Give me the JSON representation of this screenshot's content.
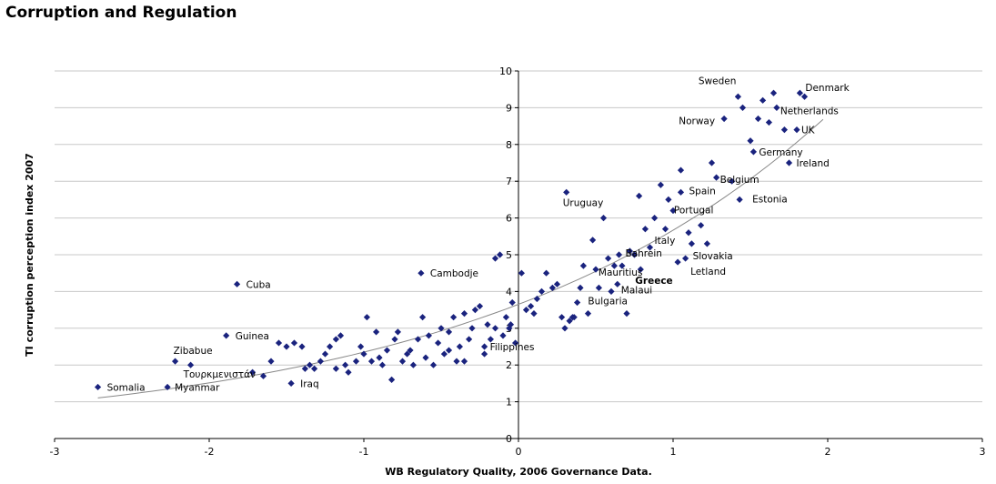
{
  "chart_data": {
    "type": "scatter",
    "title": "Corruption and Regulation",
    "xlabel": "WB Regulatory Quality, 2006 Governance Data.",
    "ylabel": "TI corruption perception index 2007",
    "xlim": [
      -3,
      3
    ],
    "ylim": [
      0,
      10
    ],
    "x_ticks": [
      -3,
      -2,
      -1,
      0,
      1,
      2,
      3
    ],
    "y_ticks": [
      0,
      1,
      2,
      3,
      4,
      5,
      6,
      7,
      8,
      9,
      10
    ],
    "grid": "horizontal",
    "colors": {
      "points": "#1a237e",
      "trend": "#888888",
      "grid": "#c8c8c8"
    },
    "labeled_points": [
      {
        "label": "Denmark",
        "x": 1.82,
        "y": 9.4
      },
      {
        "label": "Sweden",
        "x": 1.42,
        "y": 9.3
      },
      {
        "label": "Netherlands",
        "x": 1.67,
        "y": 9.0
      },
      {
        "label": "Norway",
        "x": 1.33,
        "y": 8.7
      },
      {
        "label": "UK",
        "x": 1.8,
        "y": 8.4
      },
      {
        "label": "Germany",
        "x": 1.52,
        "y": 7.8
      },
      {
        "label": "Ireland",
        "x": 1.75,
        "y": 7.5
      },
      {
        "label": "Belgium",
        "x": 1.28,
        "y": 7.1
      },
      {
        "label": "Spain",
        "x": 1.05,
        "y": 6.7
      },
      {
        "label": "Estonia",
        "x": 1.43,
        "y": 6.5
      },
      {
        "label": "Uruguay",
        "x": 0.31,
        "y": 6.7
      },
      {
        "label": "Portugal",
        "x": 0.97,
        "y": 6.5
      },
      {
        "label": "Italy",
        "x": 0.85,
        "y": 5.2
      },
      {
        "label": "Bahrein",
        "x": 0.75,
        "y": 5.0
      },
      {
        "label": "Slovakia",
        "x": 1.08,
        "y": 4.9
      },
      {
        "label": "Letland",
        "x": 1.03,
        "y": 4.8
      },
      {
        "label": "Mauritius",
        "x": 0.67,
        "y": 4.7
      },
      {
        "label": "Greece",
        "x": 0.79,
        "y": 4.6,
        "bold": true
      },
      {
        "label": "Malaui",
        "x": 0.64,
        "y": 4.2
      },
      {
        "label": "Bulgaria",
        "x": 0.52,
        "y": 4.1
      },
      {
        "label": "Cambodje",
        "x": -0.63,
        "y": 4.5
      },
      {
        "label": "Cuba",
        "x": -1.82,
        "y": 4.2
      },
      {
        "label": "Guinea",
        "x": -1.89,
        "y": 2.8
      },
      {
        "label": "Filippines",
        "x": -0.22,
        "y": 2.5
      },
      {
        "label": "Zibabue",
        "x": -2.22,
        "y": 2.1
      },
      {
        "label": "Τουρκμενιστάν",
        "x": -2.12,
        "y": 2.0
      },
      {
        "label": "Iraq",
        "x": -1.47,
        "y": 1.5
      },
      {
        "label": "Somalia",
        "x": -2.72,
        "y": 1.4
      },
      {
        "label": "Myanmar",
        "x": -2.27,
        "y": 1.4
      }
    ],
    "other_points": [
      [
        -1.72,
        1.8
      ],
      [
        -1.65,
        1.7
      ],
      [
        -1.6,
        2.1
      ],
      [
        -1.55,
        2.6
      ],
      [
        -1.5,
        2.5
      ],
      [
        -1.45,
        2.6
      ],
      [
        -1.4,
        2.5
      ],
      [
        -1.38,
        1.9
      ],
      [
        -1.35,
        2.0
      ],
      [
        -1.28,
        2.1
      ],
      [
        -1.25,
        2.3
      ],
      [
        -1.22,
        2.5
      ],
      [
        -1.18,
        2.7
      ],
      [
        -1.15,
        2.8
      ],
      [
        -1.12,
        2.0
      ],
      [
        -1.1,
        1.8
      ],
      [
        -1.05,
        2.1
      ],
      [
        -1.02,
        2.5
      ],
      [
        -1.0,
        2.3
      ],
      [
        -0.98,
        3.3
      ],
      [
        -0.95,
        2.1
      ],
      [
        -0.92,
        2.9
      ],
      [
        -0.88,
        2.0
      ],
      [
        -0.85,
        2.4
      ],
      [
        -0.82,
        1.6
      ],
      [
        -0.8,
        2.7
      ],
      [
        -0.78,
        2.9
      ],
      [
        -0.75,
        2.1
      ],
      [
        -0.72,
        2.3
      ],
      [
        -0.7,
        2.4
      ],
      [
        -0.68,
        2.0
      ],
      [
        -0.65,
        2.7
      ],
      [
        -0.62,
        3.3
      ],
      [
        -0.6,
        2.2
      ],
      [
        -0.58,
        2.8
      ],
      [
        -0.55,
        2.0
      ],
      [
        -0.52,
        2.6
      ],
      [
        -0.5,
        3.0
      ],
      [
        -0.48,
        2.3
      ],
      [
        -0.45,
        2.9
      ],
      [
        -0.42,
        3.3
      ],
      [
        -0.4,
        2.1
      ],
      [
        -0.38,
        2.5
      ],
      [
        -0.35,
        3.4
      ],
      [
        -0.32,
        2.7
      ],
      [
        -0.3,
        3.0
      ],
      [
        -0.28,
        3.5
      ],
      [
        -0.25,
        3.6
      ],
      [
        -0.22,
        2.3
      ],
      [
        -0.2,
        3.1
      ],
      [
        -0.18,
        2.7
      ],
      [
        -0.15,
        4.9
      ],
      [
        -0.12,
        5.0
      ],
      [
        -0.1,
        2.8
      ],
      [
        -0.08,
        3.3
      ],
      [
        -0.06,
        3.0
      ],
      [
        -0.04,
        3.7
      ],
      [
        -0.02,
        2.6
      ],
      [
        0.02,
        4.5
      ],
      [
        0.05,
        3.5
      ],
      [
        0.08,
        3.6
      ],
      [
        0.12,
        3.8
      ],
      [
        0.15,
        4.0
      ],
      [
        0.18,
        4.5
      ],
      [
        0.22,
        4.1
      ],
      [
        0.25,
        4.2
      ],
      [
        0.28,
        3.3
      ],
      [
        0.3,
        3.0
      ],
      [
        0.33,
        3.2
      ],
      [
        0.36,
        3.3
      ],
      [
        0.38,
        3.7
      ],
      [
        0.4,
        4.1
      ],
      [
        0.42,
        4.7
      ],
      [
        0.45,
        3.4
      ],
      [
        0.48,
        5.4
      ],
      [
        0.5,
        4.6
      ],
      [
        0.55,
        6.0
      ],
      [
        0.58,
        4.9
      ],
      [
        0.62,
        4.7
      ],
      [
        0.65,
        5.0
      ],
      [
        0.7,
        3.4
      ],
      [
        0.72,
        5.1
      ],
      [
        0.78,
        6.6
      ],
      [
        0.82,
        5.7
      ],
      [
        0.88,
        6.0
      ],
      [
        0.92,
        6.9
      ],
      [
        0.95,
        5.7
      ],
      [
        1.0,
        6.2
      ],
      [
        1.05,
        7.3
      ],
      [
        1.1,
        5.6
      ],
      [
        1.12,
        5.3
      ],
      [
        1.18,
        5.8
      ],
      [
        1.22,
        5.3
      ],
      [
        1.25,
        7.5
      ],
      [
        1.38,
        7.0
      ],
      [
        1.45,
        9.0
      ],
      [
        1.5,
        8.1
      ],
      [
        1.55,
        8.7
      ],
      [
        1.58,
        9.2
      ],
      [
        1.62,
        8.6
      ],
      [
        1.65,
        9.4
      ],
      [
        1.72,
        8.4
      ],
      [
        1.85,
        9.3
      ],
      [
        -1.18,
        1.9
      ],
      [
        -1.32,
        1.9
      ],
      [
        -0.9,
        2.2
      ],
      [
        -0.45,
        2.4
      ],
      [
        -0.35,
        2.1
      ],
      [
        -0.15,
        3.0
      ],
      [
        -0.05,
        3.1
      ],
      [
        0.1,
        3.4
      ],
      [
        0.35,
        3.3
      ],
      [
        0.6,
        4.0
      ]
    ],
    "trend": {
      "type": "exponential",
      "a": 3.65,
      "b": 0.44,
      "x_range": [
        -2.72,
        1.97
      ]
    }
  }
}
